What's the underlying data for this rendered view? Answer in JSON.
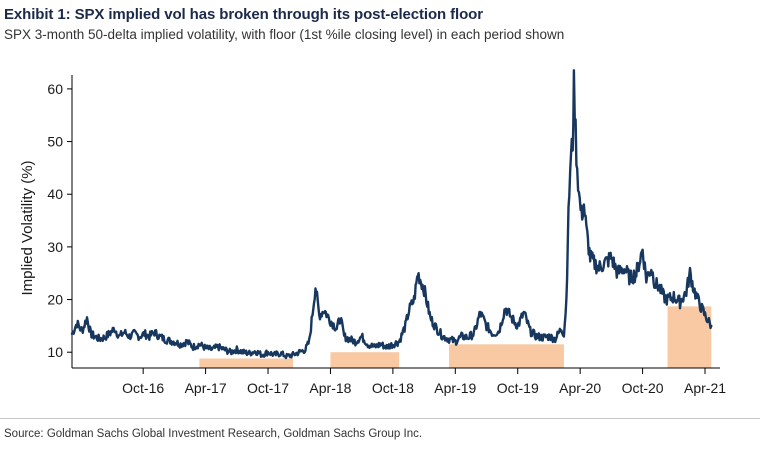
{
  "header": {
    "title": "Exhibit 1: SPX implied vol has broken through its post-election floor",
    "subtitle": "SPX 3-month 50-delta implied volatility, with floor (1st %ile closing level) in each period shown"
  },
  "footer": {
    "source": "Source: Goldman Sachs Global Investment Research, Goldman Sachs Group Inc."
  },
  "colors": {
    "line": "#17375e",
    "floor": "#f8c9a3",
    "axis": "#000000"
  },
  "chart_data": {
    "type": "line",
    "title": "Exhibit 1: SPX implied vol has broken through its post-election floor",
    "ylabel": "Implied Volatility (%)",
    "xlabel": "",
    "xlim": [
      2016.18,
      2021.37
    ],
    "ylim": [
      7,
      61.5
    ],
    "yticks": [
      10,
      20,
      30,
      40,
      50,
      60
    ],
    "xticks": [
      {
        "label": "Oct-16",
        "x": 2016.75
      },
      {
        "label": "Apr-17",
        "x": 2017.25
      },
      {
        "label": "Oct-17",
        "x": 2017.75
      },
      {
        "label": "Apr-18",
        "x": 2018.25
      },
      {
        "label": "Oct-18",
        "x": 2018.75
      },
      {
        "label": "Apr-19",
        "x": 2019.25
      },
      {
        "label": "Oct-19",
        "x": 2019.75
      },
      {
        "label": "Apr-20",
        "x": 2020.25
      },
      {
        "label": "Oct-20",
        "x": 2020.75
      },
      {
        "label": "Apr-21",
        "x": 2021.25
      }
    ],
    "floors": [
      {
        "start": 2017.2,
        "end": 2017.95,
        "value": 8.8
      },
      {
        "start": 2018.25,
        "end": 2018.8,
        "value": 10.0
      },
      {
        "start": 2019.2,
        "end": 2020.12,
        "value": 11.5
      },
      {
        "start": 2020.95,
        "end": 2021.3,
        "value": 18.7
      }
    ],
    "series": [
      {
        "name": "SPX 3M 50-delta implied vol",
        "x": [
          2016.18,
          2016.22,
          2016.26,
          2016.3,
          2016.33,
          2016.36,
          2016.4,
          2016.44,
          2016.48,
          2016.52,
          2016.56,
          2016.6,
          2016.64,
          2016.68,
          2016.72,
          2016.76,
          2016.8,
          2016.84,
          2016.88,
          2016.92,
          2016.96,
          2017.0,
          2017.05,
          2017.1,
          2017.15,
          2017.2,
          2017.25,
          2017.3,
          2017.35,
          2017.4,
          2017.45,
          2017.5,
          2017.55,
          2017.6,
          2017.65,
          2017.7,
          2017.75,
          2017.8,
          2017.85,
          2017.9,
          2017.95,
          2018.0,
          2018.05,
          2018.08,
          2018.1,
          2018.13,
          2018.16,
          2018.2,
          2018.25,
          2018.3,
          2018.33,
          2018.36,
          2018.4,
          2018.45,
          2018.5,
          2018.55,
          2018.6,
          2018.65,
          2018.7,
          2018.75,
          2018.8,
          2018.85,
          2018.88,
          2018.92,
          2018.95,
          2019.0,
          2019.05,
          2019.1,
          2019.15,
          2019.2,
          2019.25,
          2019.3,
          2019.35,
          2019.4,
          2019.45,
          2019.5,
          2019.55,
          2019.6,
          2019.65,
          2019.7,
          2019.75,
          2019.8,
          2019.85,
          2019.9,
          2019.95,
          2020.0,
          2020.05,
          2020.1,
          2020.12,
          2020.14,
          2020.15,
          2020.17,
          2020.19,
          2020.2,
          2020.22,
          2020.24,
          2020.26,
          2020.28,
          2020.3,
          2020.33,
          2020.36,
          2020.4,
          2020.45,
          2020.5,
          2020.55,
          2020.6,
          2020.65,
          2020.7,
          2020.75,
          2020.78,
          2020.82,
          2020.85,
          2020.88,
          2020.92,
          2020.95,
          2021.0,
          2021.05,
          2021.1,
          2021.13,
          2021.16,
          2021.2,
          2021.25,
          2021.3
        ],
        "values": [
          13.5,
          15.5,
          14.0,
          16.5,
          13.5,
          13.0,
          12.5,
          12.8,
          13.5,
          14.5,
          13.0,
          13.8,
          13.0,
          13.5,
          13.0,
          13.5,
          13.0,
          13.8,
          13.0,
          12.5,
          12.2,
          12.0,
          11.5,
          12.0,
          11.0,
          11.5,
          10.8,
          10.5,
          11.0,
          10.5,
          10.0,
          10.5,
          10.0,
          9.8,
          10.2,
          9.5,
          10.0,
          9.5,
          9.8,
          9.2,
          9.5,
          10.0,
          10.5,
          12.0,
          16.0,
          22.5,
          17.0,
          18.0,
          16.0,
          14.5,
          16.5,
          13.0,
          12.5,
          12.0,
          13.0,
          11.5,
          11.0,
          11.5,
          11.0,
          11.5,
          12.0,
          15.0,
          18.0,
          20.0,
          25.0,
          22.0,
          16.5,
          14.5,
          13.0,
          12.5,
          12.0,
          13.0,
          12.8,
          13.5,
          17.5,
          15.0,
          13.5,
          14.0,
          18.5,
          16.5,
          15.0,
          17.5,
          14.0,
          13.0,
          12.8,
          13.0,
          12.5,
          14.5,
          13.5,
          20.0,
          31.0,
          45.0,
          50.0,
          60.5,
          48.0,
          40.0,
          36.0,
          38.0,
          33.0,
          28.0,
          27.0,
          26.0,
          27.0,
          28.0,
          25.0,
          26.0,
          24.0,
          25.0,
          29.5,
          24.0,
          26.0,
          23.0,
          22.5,
          20.5,
          20.0,
          20.5,
          19.5,
          21.5,
          25.0,
          22.0,
          19.5,
          17.0,
          15.0
        ]
      }
    ]
  }
}
